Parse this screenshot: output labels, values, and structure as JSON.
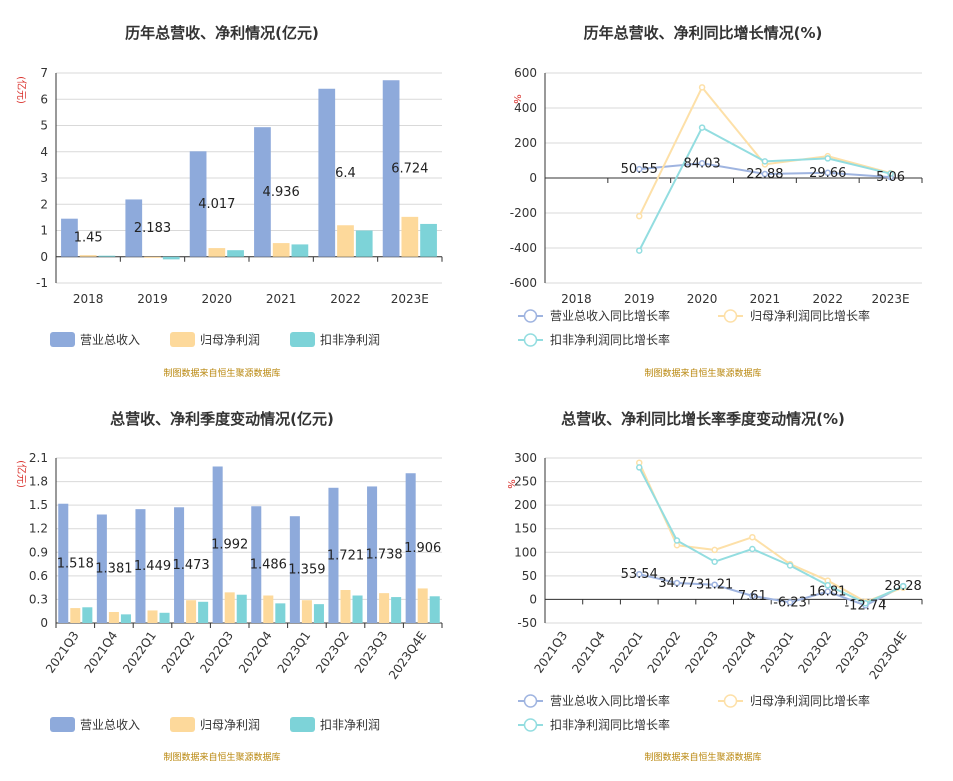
{
  "colors": {
    "revenue": "#8eaadb",
    "parent_net": "#fdd99b",
    "deducted_net": "#7dd3d8",
    "revenue_line": "#9fb4e0",
    "parent_line": "#fde0a8",
    "deducted_line": "#93dde0",
    "axis": "#333333",
    "grid": "#d9d9d9",
    "source": "#b8860b",
    "ylabel": "#d9302b"
  },
  "chart_data": [
    {
      "type": "bar",
      "title": "历年总营收、净利情况(亿元)",
      "ylabel": "(亿元)",
      "categories": [
        "2018",
        "2019",
        "2020",
        "2021",
        "2022",
        "2023E"
      ],
      "ylim": [
        -1,
        7
      ],
      "yticks": [
        -1,
        0,
        1,
        2,
        3,
        4,
        5,
        6,
        7
      ],
      "grid": true,
      "legend_position": "bottom",
      "series": [
        {
          "name": "营业总收入",
          "values": [
            1.45,
            2.183,
            4.017,
            4.936,
            6.4,
            6.724
          ],
          "labels": [
            "1.45",
            "2.183",
            "4.017",
            "4.936",
            "6.4",
            "6.724"
          ]
        },
        {
          "name": "归母净利润",
          "values": [
            0.06,
            -0.04,
            0.33,
            0.52,
            1.2,
            1.52
          ]
        },
        {
          "name": "扣非净利润",
          "values": [
            0.04,
            -0.1,
            0.25,
            0.47,
            1.0,
            1.25
          ]
        }
      ],
      "source": "制图数据来自恒生聚源数据库"
    },
    {
      "type": "line",
      "title": "历年总营收、净利同比增长情况(%)",
      "ylabel": "%",
      "categories": [
        "2018",
        "2019",
        "2020",
        "2021",
        "2022",
        "2023E"
      ],
      "ylim": [
        -600,
        600
      ],
      "yticks": [
        -600,
        -400,
        -200,
        0,
        200,
        400,
        600
      ],
      "grid": true,
      "legend_position": "bottom",
      "series": [
        {
          "name": "营业总收入同比增长率",
          "values": [
            null,
            50.55,
            84.03,
            22.88,
            29.66,
            5.06
          ],
          "labels": [
            "",
            "50.55",
            "84.03",
            "22.88",
            "29.66",
            "5.06"
          ]
        },
        {
          "name": "归母净利润同比增长率",
          "values": [
            null,
            -218,
            518,
            78,
            125,
            28
          ]
        },
        {
          "name": "扣非净利润同比增长率",
          "values": [
            null,
            -415,
            288,
            95,
            112,
            25
          ]
        }
      ],
      "source": "制图数据来自恒生聚源数据库"
    },
    {
      "type": "bar",
      "title": "总营收、净利季度变动情况(亿元)",
      "ylabel": "(亿元)",
      "categories": [
        "2021Q3",
        "2021Q4",
        "2022Q1",
        "2022Q2",
        "2022Q3",
        "2022Q4",
        "2023Q1",
        "2023Q2",
        "2023Q3",
        "2023Q4E"
      ],
      "ylim": [
        0,
        2.1
      ],
      "yticks": [
        0,
        0.3,
        0.6,
        0.9,
        1.2,
        1.5,
        1.8,
        2.1
      ],
      "grid": true,
      "legend_position": "bottom",
      "series": [
        {
          "name": "营业总收入",
          "values": [
            1.518,
            1.381,
            1.449,
            1.473,
            1.992,
            1.486,
            1.359,
            1.721,
            1.738,
            1.906
          ],
          "labels": [
            "1.518",
            "1.381",
            "1.449",
            "1.473",
            "1.992",
            "1.486",
            "1.359",
            "1.721",
            "1.738",
            "1.906"
          ]
        },
        {
          "name": "归母净利润",
          "values": [
            0.19,
            0.14,
            0.16,
            0.29,
            0.39,
            0.35,
            0.29,
            0.42,
            0.38,
            0.44
          ]
        },
        {
          "name": "扣非净利润",
          "values": [
            0.2,
            0.11,
            0.13,
            0.27,
            0.36,
            0.25,
            0.24,
            0.35,
            0.33,
            0.34
          ]
        }
      ],
      "source": "制图数据来自恒生聚源数据库"
    },
    {
      "type": "line",
      "title": "总营收、净利同比增长率季度变动情况(%)",
      "ylabel": "%",
      "categories": [
        "2021Q3",
        "2021Q4",
        "2022Q1",
        "2022Q2",
        "2022Q3",
        "2022Q4",
        "2023Q1",
        "2023Q2",
        "2023Q3",
        "2023Q4E"
      ],
      "ylim": [
        -50,
        300
      ],
      "yticks": [
        -50,
        0,
        50,
        100,
        150,
        200,
        250,
        300
      ],
      "grid": true,
      "legend_position": "bottom",
      "series": [
        {
          "name": "营业总收入同比增长率",
          "values": [
            null,
            null,
            53.54,
            34.77,
            31.21,
            7.61,
            -6.23,
            16.81,
            -12.74,
            28.28
          ],
          "labels": [
            "",
            "",
            "53.54",
            "34.77",
            "31.21",
            "7.61",
            "-6.23",
            "16.81",
            "-12.74",
            "28.28"
          ]
        },
        {
          "name": "归母净利润同比增长率",
          "values": [
            null,
            null,
            290,
            115,
            105,
            132,
            75,
            40,
            -5,
            25
          ]
        },
        {
          "name": "扣非净利润同比增长率",
          "values": [
            null,
            null,
            280,
            125,
            80,
            107,
            72,
            30,
            -8,
            28
          ]
        }
      ],
      "source": "制图数据来自恒生聚源数据库"
    }
  ]
}
